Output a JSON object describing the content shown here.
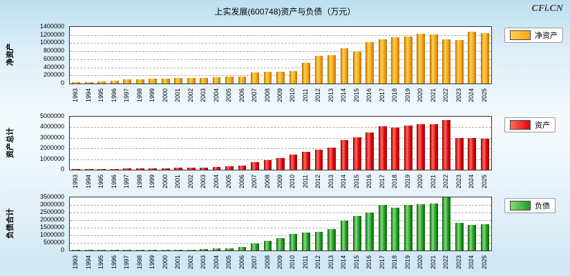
{
  "header": {
    "title": "上实发展(600748)资产与负债（万元）",
    "watermark": "CFi.CN"
  },
  "chart_data": [
    {
      "type": "bar",
      "axis_title": "净资产",
      "legend": "净资产",
      "bar_color": "#F9A21B",
      "bar_highlight": "#FFD34D",
      "bar_edge": "#B86E00",
      "ylim": [
        0,
        1400000
      ],
      "ytick_step": 200000,
      "categories": [
        "1993",
        "1994",
        "1995",
        "1996",
        "1997",
        "1998",
        "1999",
        "2000",
        "2001",
        "2002",
        "2003",
        "2004",
        "2005",
        "2006",
        "2007",
        "2008",
        "2009",
        "2010",
        "2011",
        "2012",
        "2013",
        "2014",
        "2015",
        "2016",
        "2017",
        "2018",
        "2019",
        "2020",
        "2021",
        "2022",
        "2023",
        "2024",
        "2025"
      ],
      "values": [
        30000,
        35000,
        60000,
        70000,
        100000,
        110000,
        118000,
        124000,
        130000,
        136000,
        142000,
        152000,
        165000,
        178000,
        272000,
        285000,
        292000,
        300000,
        510000,
        680000,
        700000,
        865000,
        790000,
        1020000,
        1090000,
        1140000,
        1160000,
        1230000,
        1210000,
        1090000,
        1075000,
        1280000,
        1245000
      ]
    },
    {
      "type": "bar",
      "axis_title": "资产总计",
      "legend": "资产",
      "bar_color": "#E6000B",
      "bar_highlight": "#FF6A5E",
      "bar_edge": "#8B0000",
      "ylim": [
        0,
        5000000
      ],
      "ytick_step": 1000000,
      "categories": [
        "1993",
        "1994",
        "1995",
        "1996",
        "1997",
        "1998",
        "1999",
        "2000",
        "2001",
        "2002",
        "2003",
        "2004",
        "2005",
        "2006",
        "2007",
        "2008",
        "2009",
        "2010",
        "2011",
        "2012",
        "2013",
        "2014",
        "2015",
        "2016",
        "2017",
        "2018",
        "2019",
        "2020",
        "2021",
        "2022",
        "2023",
        "2024",
        "2025"
      ],
      "values": [
        30000,
        55000,
        70000,
        90000,
        120000,
        140000,
        150000,
        160000,
        170000,
        185000,
        220000,
        270000,
        320000,
        400000,
        720000,
        900000,
        1100000,
        1420000,
        1700000,
        1900000,
        2100000,
        2800000,
        3050000,
        3500000,
        4100000,
        3950000,
        4150000,
        4280000,
        4300000,
        4680000,
        3000000,
        2980000,
        2950000
      ]
    },
    {
      "type": "bar",
      "axis_title": "负债合计",
      "legend": "负债",
      "bar_color": "#1E9E1E",
      "bar_highlight": "#86D97F",
      "bar_edge": "#0B5E0B",
      "ylim": [
        0,
        3500000
      ],
      "ytick_step": 500000,
      "categories": [
        "1993",
        "1994",
        "1995",
        "1996",
        "1997",
        "1998",
        "1999",
        "2000",
        "2001",
        "2002",
        "2003",
        "2004",
        "2005",
        "2006",
        "2007",
        "2008",
        "2009",
        "2010",
        "2011",
        "2012",
        "2013",
        "2014",
        "2015",
        "2016",
        "2017",
        "2018",
        "2019",
        "2020",
        "2021",
        "2022",
        "2023",
        "2024",
        "2025"
      ],
      "values": [
        10000,
        20000,
        25000,
        25000,
        30000,
        35000,
        35000,
        38000,
        40000,
        48000,
        75000,
        115000,
        155000,
        225000,
        450000,
        615000,
        810000,
        1110000,
        1190000,
        1210000,
        1400000,
        1935000,
        2260000,
        2480000,
        3010000,
        2810000,
        2990000,
        3050000,
        3090000,
        3500000,
        1820000,
        1700000,
        1710000
      ]
    }
  ]
}
